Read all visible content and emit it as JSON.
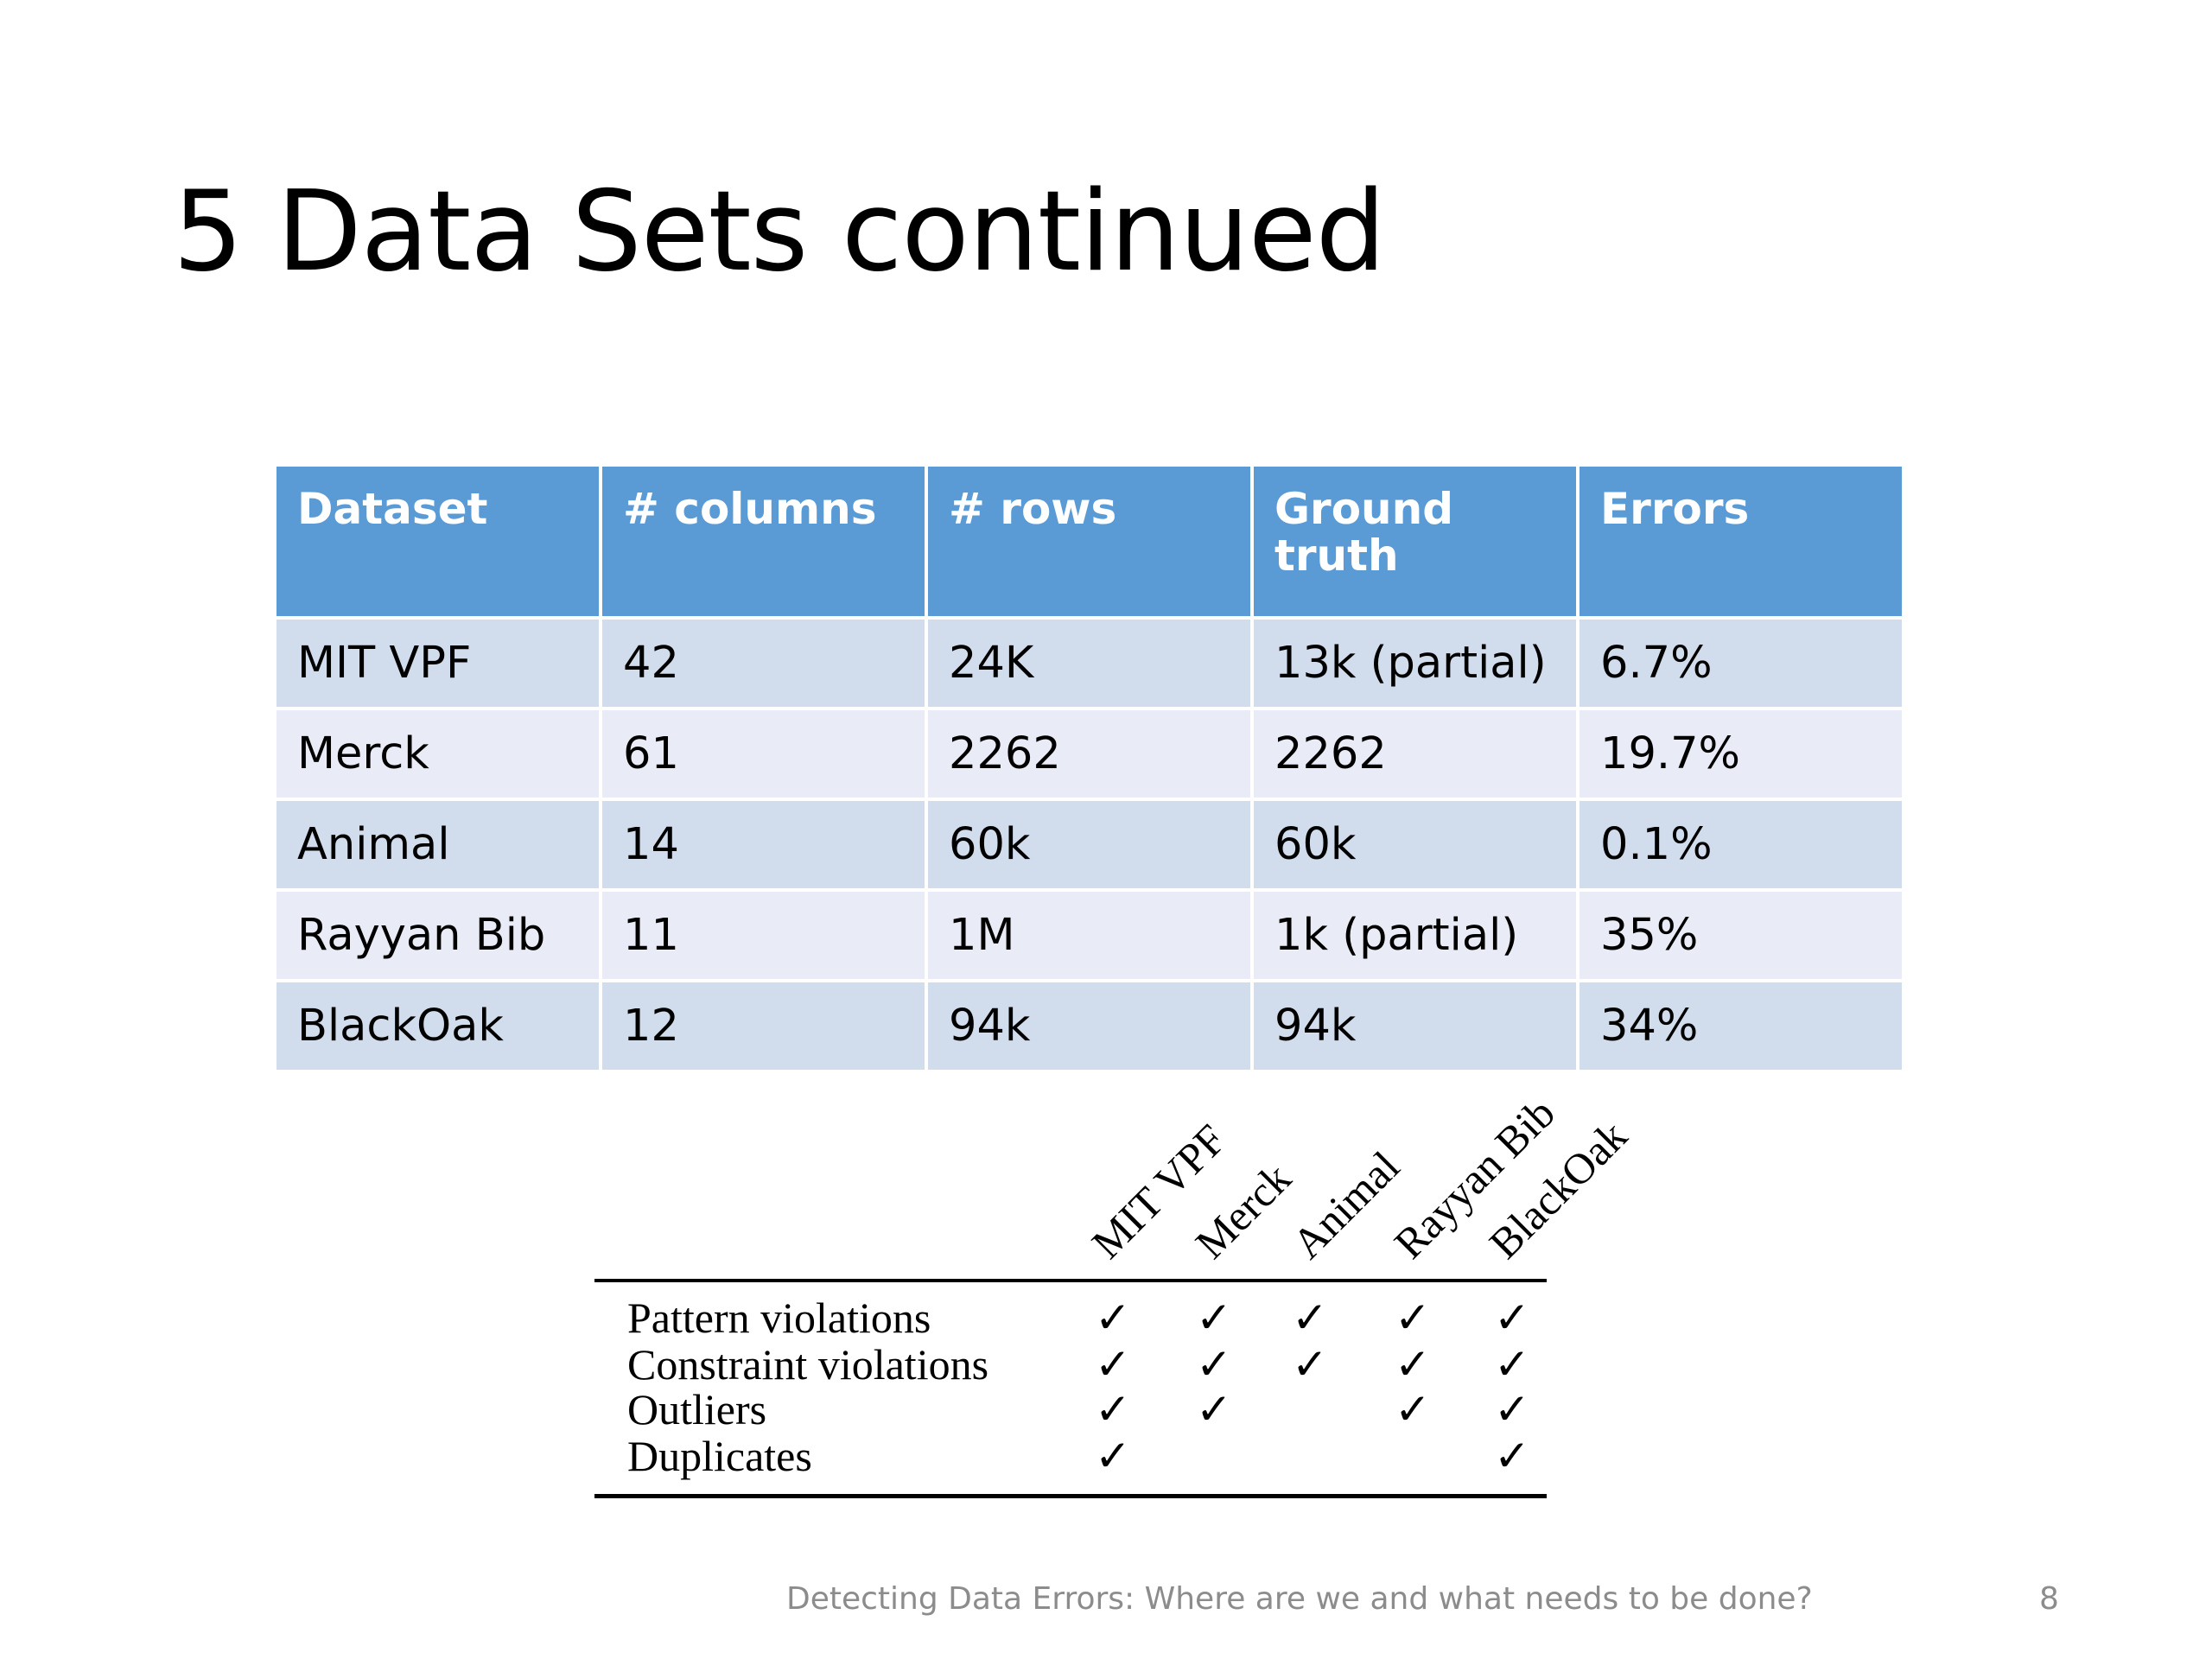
{
  "slide": {
    "title": "5 Data Sets continued",
    "footer": "Detecting Data Errors: Where are we and what needs to be done?",
    "page_number": "8"
  },
  "table": {
    "headers": [
      "Dataset",
      "# columns",
      "# rows",
      "Ground truth",
      "Errors"
    ],
    "rows": [
      [
        "MIT VPF",
        "42",
        "24K",
        "13k (partial)",
        "6.7%"
      ],
      [
        "Merck",
        "61",
        "2262",
        "2262",
        "19.7%"
      ],
      [
        "Animal",
        "14",
        "60k",
        "60k",
        "0.1%"
      ],
      [
        "Rayyan Bib",
        "11",
        "1M",
        "1k (partial)",
        "35%"
      ],
      [
        "BlackOak",
        "12",
        "94k",
        "94k",
        "34%"
      ]
    ],
    "colors": {
      "header_bg": "#5b9bd5",
      "row_odd_bg": "#d1dcec",
      "row_even_bg": "#e9ecf6"
    }
  },
  "matrix": {
    "columns": [
      "MIT VPF",
      "Merck",
      "Animal",
      "Rayyan Bib",
      "BlackOak"
    ],
    "check_symbol": "✓",
    "rows": [
      {
        "label": "Pattern violations",
        "checks": [
          true,
          true,
          true,
          true,
          true
        ]
      },
      {
        "label": "Constraint violations",
        "checks": [
          true,
          true,
          true,
          true,
          true
        ]
      },
      {
        "label": "Outliers",
        "checks": [
          true,
          true,
          false,
          true,
          true
        ]
      },
      {
        "label": "Duplicates",
        "checks": [
          true,
          false,
          false,
          false,
          true
        ]
      }
    ]
  }
}
